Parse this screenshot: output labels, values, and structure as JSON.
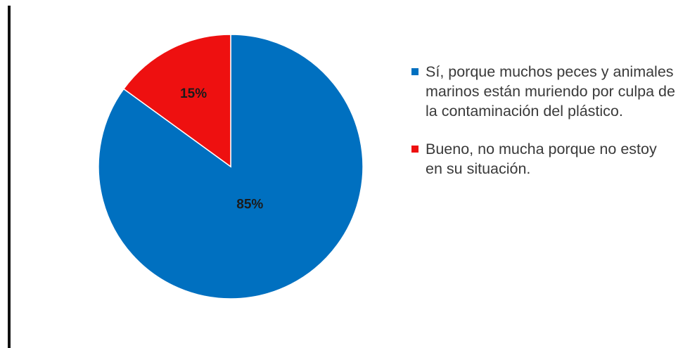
{
  "chart_data": {
    "type": "pie",
    "title": "",
    "slices": [
      {
        "label": "Sí, porque muchos peces y animales marinos están muriendo por culpa de la contaminación del plástico.",
        "value": 85,
        "data_label": "85%",
        "color": "#0070C0"
      },
      {
        "label": "Bueno, no mucha porque no estoy en su situación.",
        "value": 15,
        "data_label": "15%",
        "color": "#EE1010"
      }
    ],
    "start_angle_deg": 0,
    "direction": "clockwise",
    "legend_position": "right"
  }
}
